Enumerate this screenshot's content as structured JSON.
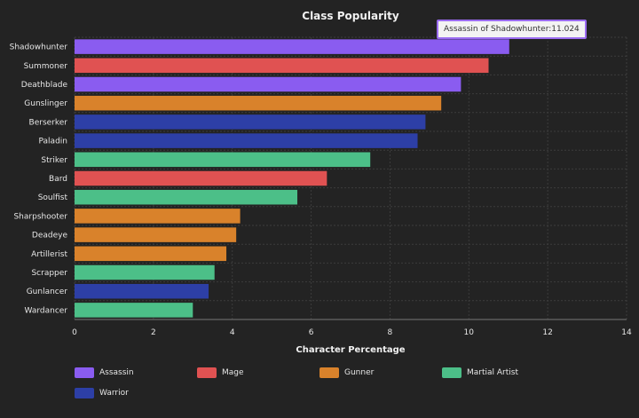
{
  "chart_data": {
    "type": "bar",
    "orientation": "horizontal",
    "title": "Class Popularity",
    "xlabel": "Character Percentage",
    "ylabel": "",
    "xlim": [
      0,
      14
    ],
    "xticks": [
      0,
      2,
      4,
      6,
      8,
      10,
      12,
      14
    ],
    "grid": true,
    "legend_position": "bottom",
    "categories": [
      "Shadowhunter",
      "Summoner",
      "Deathblade",
      "Gunslinger",
      "Berserker",
      "Paladin",
      "Striker",
      "Bard",
      "Soulfist",
      "Sharpshooter",
      "Deadeye",
      "Artillerist",
      "Scrapper",
      "Gunlancer",
      "Wardancer"
    ],
    "values": [
      11.024,
      10.5,
      9.8,
      9.3,
      8.9,
      8.7,
      7.5,
      6.4,
      5.65,
      4.2,
      4.1,
      3.85,
      3.55,
      3.4,
      3.0
    ],
    "groups": [
      "Assassin",
      "Mage",
      "Assassin",
      "Gunner",
      "Warrior",
      "Warrior",
      "Martial Artist",
      "Mage",
      "Martial Artist",
      "Gunner",
      "Gunner",
      "Gunner",
      "Martial Artist",
      "Warrior",
      "Martial Artist"
    ],
    "legend": [
      {
        "name": "Assassin",
        "color": "#8a5cf0"
      },
      {
        "name": "Mage",
        "color": "#e05252"
      },
      {
        "name": "Gunner",
        "color": "#d9822b"
      },
      {
        "name": "Martial Artist",
        "color": "#4cbf88"
      },
      {
        "name": "Warrior",
        "color": "#2d3fa6"
      }
    ],
    "tooltip": "Assassin of Shadowhunter:11.024"
  }
}
